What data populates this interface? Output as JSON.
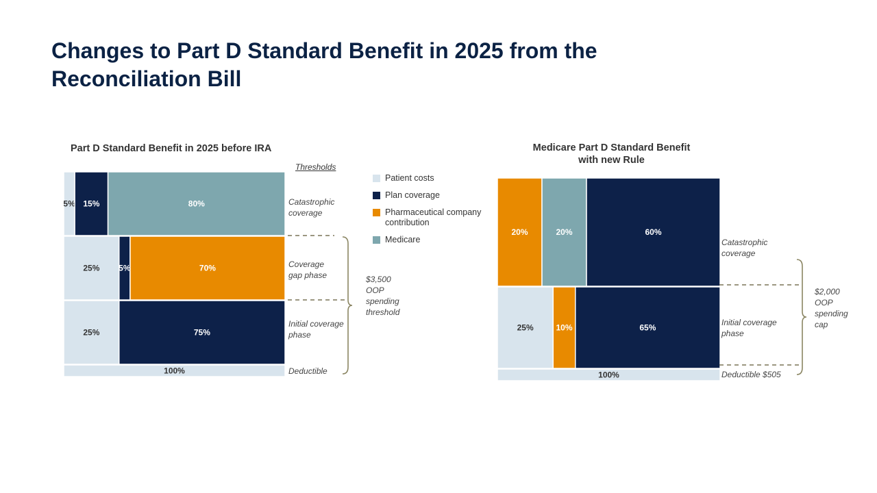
{
  "title": [
    "Changes to Part D Standard Benefit in 2025 from the",
    "Reconciliation  Bill"
  ],
  "legend": [
    {
      "label": "Patient costs",
      "color": "#d8e4ed"
    },
    {
      "label": "Plan coverage",
      "color": "#0d2149"
    },
    {
      "label": "Pharmaceutical company contribution",
      "color": "#e88a00"
    },
    {
      "label": "Medicare",
      "color": "#7ea7ae"
    }
  ],
  "chart_data": [
    {
      "type": "bar",
      "title": "Part D Standard Benefit in 2025 before IRA",
      "thresholds_label": "Thresholds",
      "phases": [
        {
          "name": "Catastrophic coverage",
          "label_lines": [
            "Catastrophic",
            "coverage"
          ],
          "segments": [
            {
              "party": "Patient costs",
              "value": 5,
              "label": "5%"
            },
            {
              "party": "Plan coverage",
              "value": 15,
              "label": "15%"
            },
            {
              "party": "Medicare",
              "value": 80,
              "label": "80%"
            }
          ]
        },
        {
          "name": "Coverage gap phase",
          "label_lines": [
            "Coverage",
            "gap  phase"
          ],
          "segments": [
            {
              "party": "Patient costs",
              "value": 25,
              "label": "25%"
            },
            {
              "party": "Plan coverage",
              "value": 5,
              "label": "5%"
            },
            {
              "party": "Pharmaceutical company contribution",
              "value": 70,
              "label": "70%"
            }
          ]
        },
        {
          "name": "Initial coverage phase",
          "label_lines": [
            "Initial coverage",
            "phase"
          ],
          "segments": [
            {
              "party": "Patient costs",
              "value": 25,
              "label": "25%"
            },
            {
              "party": "Plan coverage",
              "value": 75,
              "label": "75%"
            }
          ]
        },
        {
          "name": "Deductible",
          "label_lines": [
            "Deductible"
          ],
          "segments": [
            {
              "party": "Patient costs",
              "value": 100,
              "label": "100%"
            }
          ]
        }
      ],
      "brace_label": [
        "$3,500",
        "OOP",
        "spending",
        "threshold"
      ]
    },
    {
      "type": "bar",
      "title": [
        "Medicare Part D Standard Benefit",
        "with new Rule"
      ],
      "phases": [
        {
          "name": "Catastrophic coverage",
          "label_lines": [
            "Catastrophic",
            "coverage"
          ],
          "segments": [
            {
              "party": "Pharmaceutical company contribution",
              "value": 20,
              "label": "20%"
            },
            {
              "party": "Medicare",
              "value": 20,
              "label": "20%"
            },
            {
              "party": "Plan coverage",
              "value": 60,
              "label": "60%"
            }
          ]
        },
        {
          "name": "Initial coverage phase",
          "label_lines": [
            "Initial coverage",
            "phase"
          ],
          "segments": [
            {
              "party": "Patient costs",
              "value": 25,
              "label": "25%"
            },
            {
              "party": "Pharmaceutical company contribution",
              "value": 10,
              "label": "10%"
            },
            {
              "party": "Plan coverage",
              "value": 65,
              "label": "65%"
            }
          ]
        },
        {
          "name": "Deductible",
          "label_lines": [
            "Deductible  $505"
          ],
          "segments": [
            {
              "party": "Patient costs",
              "value": 100,
              "label": "100%"
            }
          ]
        }
      ],
      "brace_label": [
        "$2,000",
        "OOP",
        "spending",
        "cap"
      ]
    }
  ]
}
